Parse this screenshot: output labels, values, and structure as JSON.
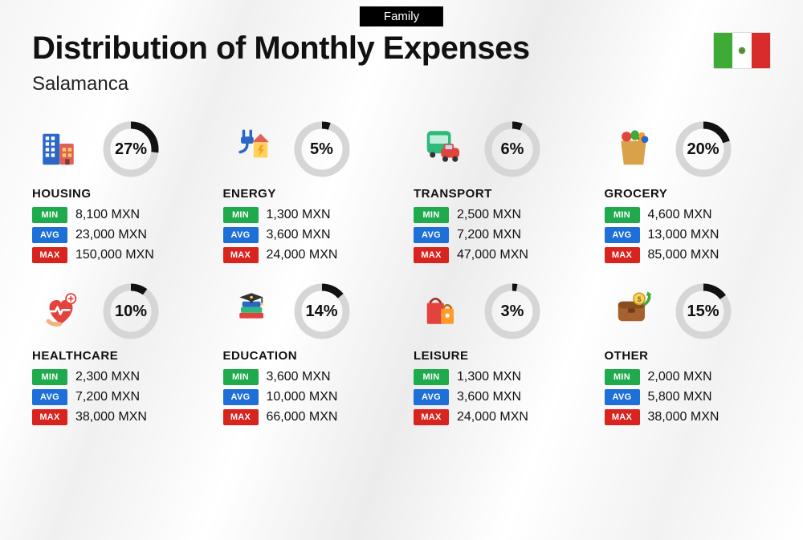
{
  "tag": "Family",
  "title": "Distribution of Monthly Expenses",
  "subtitle": "Salamanca",
  "flag": {
    "left": "#3eab37",
    "mid": "#ffffff",
    "right": "#d82b2b"
  },
  "ring_style": {
    "track_color": "#d6d6d6",
    "progress_color": "#111111",
    "stroke_width": 9,
    "radius": 30
  },
  "badges": {
    "min": {
      "label": "MIN",
      "bg": "#1fab4c"
    },
    "avg": {
      "label": "AVG",
      "bg": "#1f6fd8"
    },
    "max": {
      "label": "MAX",
      "bg": "#d8241f"
    }
  },
  "currency": "MXN",
  "categories": [
    {
      "key": "housing",
      "name": "HOUSING",
      "percent": 27,
      "min": "8,100",
      "avg": "23,000",
      "max": "150,000",
      "icon": "housing"
    },
    {
      "key": "energy",
      "name": "ENERGY",
      "percent": 5,
      "min": "1,300",
      "avg": "3,600",
      "max": "24,000",
      "icon": "energy"
    },
    {
      "key": "transport",
      "name": "TRANSPORT",
      "percent": 6,
      "min": "2,500",
      "avg": "7,200",
      "max": "47,000",
      "icon": "transport"
    },
    {
      "key": "grocery",
      "name": "GROCERY",
      "percent": 20,
      "min": "4,600",
      "avg": "13,000",
      "max": "85,000",
      "icon": "grocery"
    },
    {
      "key": "healthcare",
      "name": "HEALTHCARE",
      "percent": 10,
      "min": "2,300",
      "avg": "7,200",
      "max": "38,000",
      "icon": "healthcare"
    },
    {
      "key": "education",
      "name": "EDUCATION",
      "percent": 14,
      "min": "3,600",
      "avg": "10,000",
      "max": "66,000",
      "icon": "education"
    },
    {
      "key": "leisure",
      "name": "LEISURE",
      "percent": 3,
      "min": "1,300",
      "avg": "3,600",
      "max": "24,000",
      "icon": "leisure"
    },
    {
      "key": "other",
      "name": "OTHER",
      "percent": 15,
      "min": "2,000",
      "avg": "5,800",
      "max": "38,000",
      "icon": "other"
    }
  ]
}
